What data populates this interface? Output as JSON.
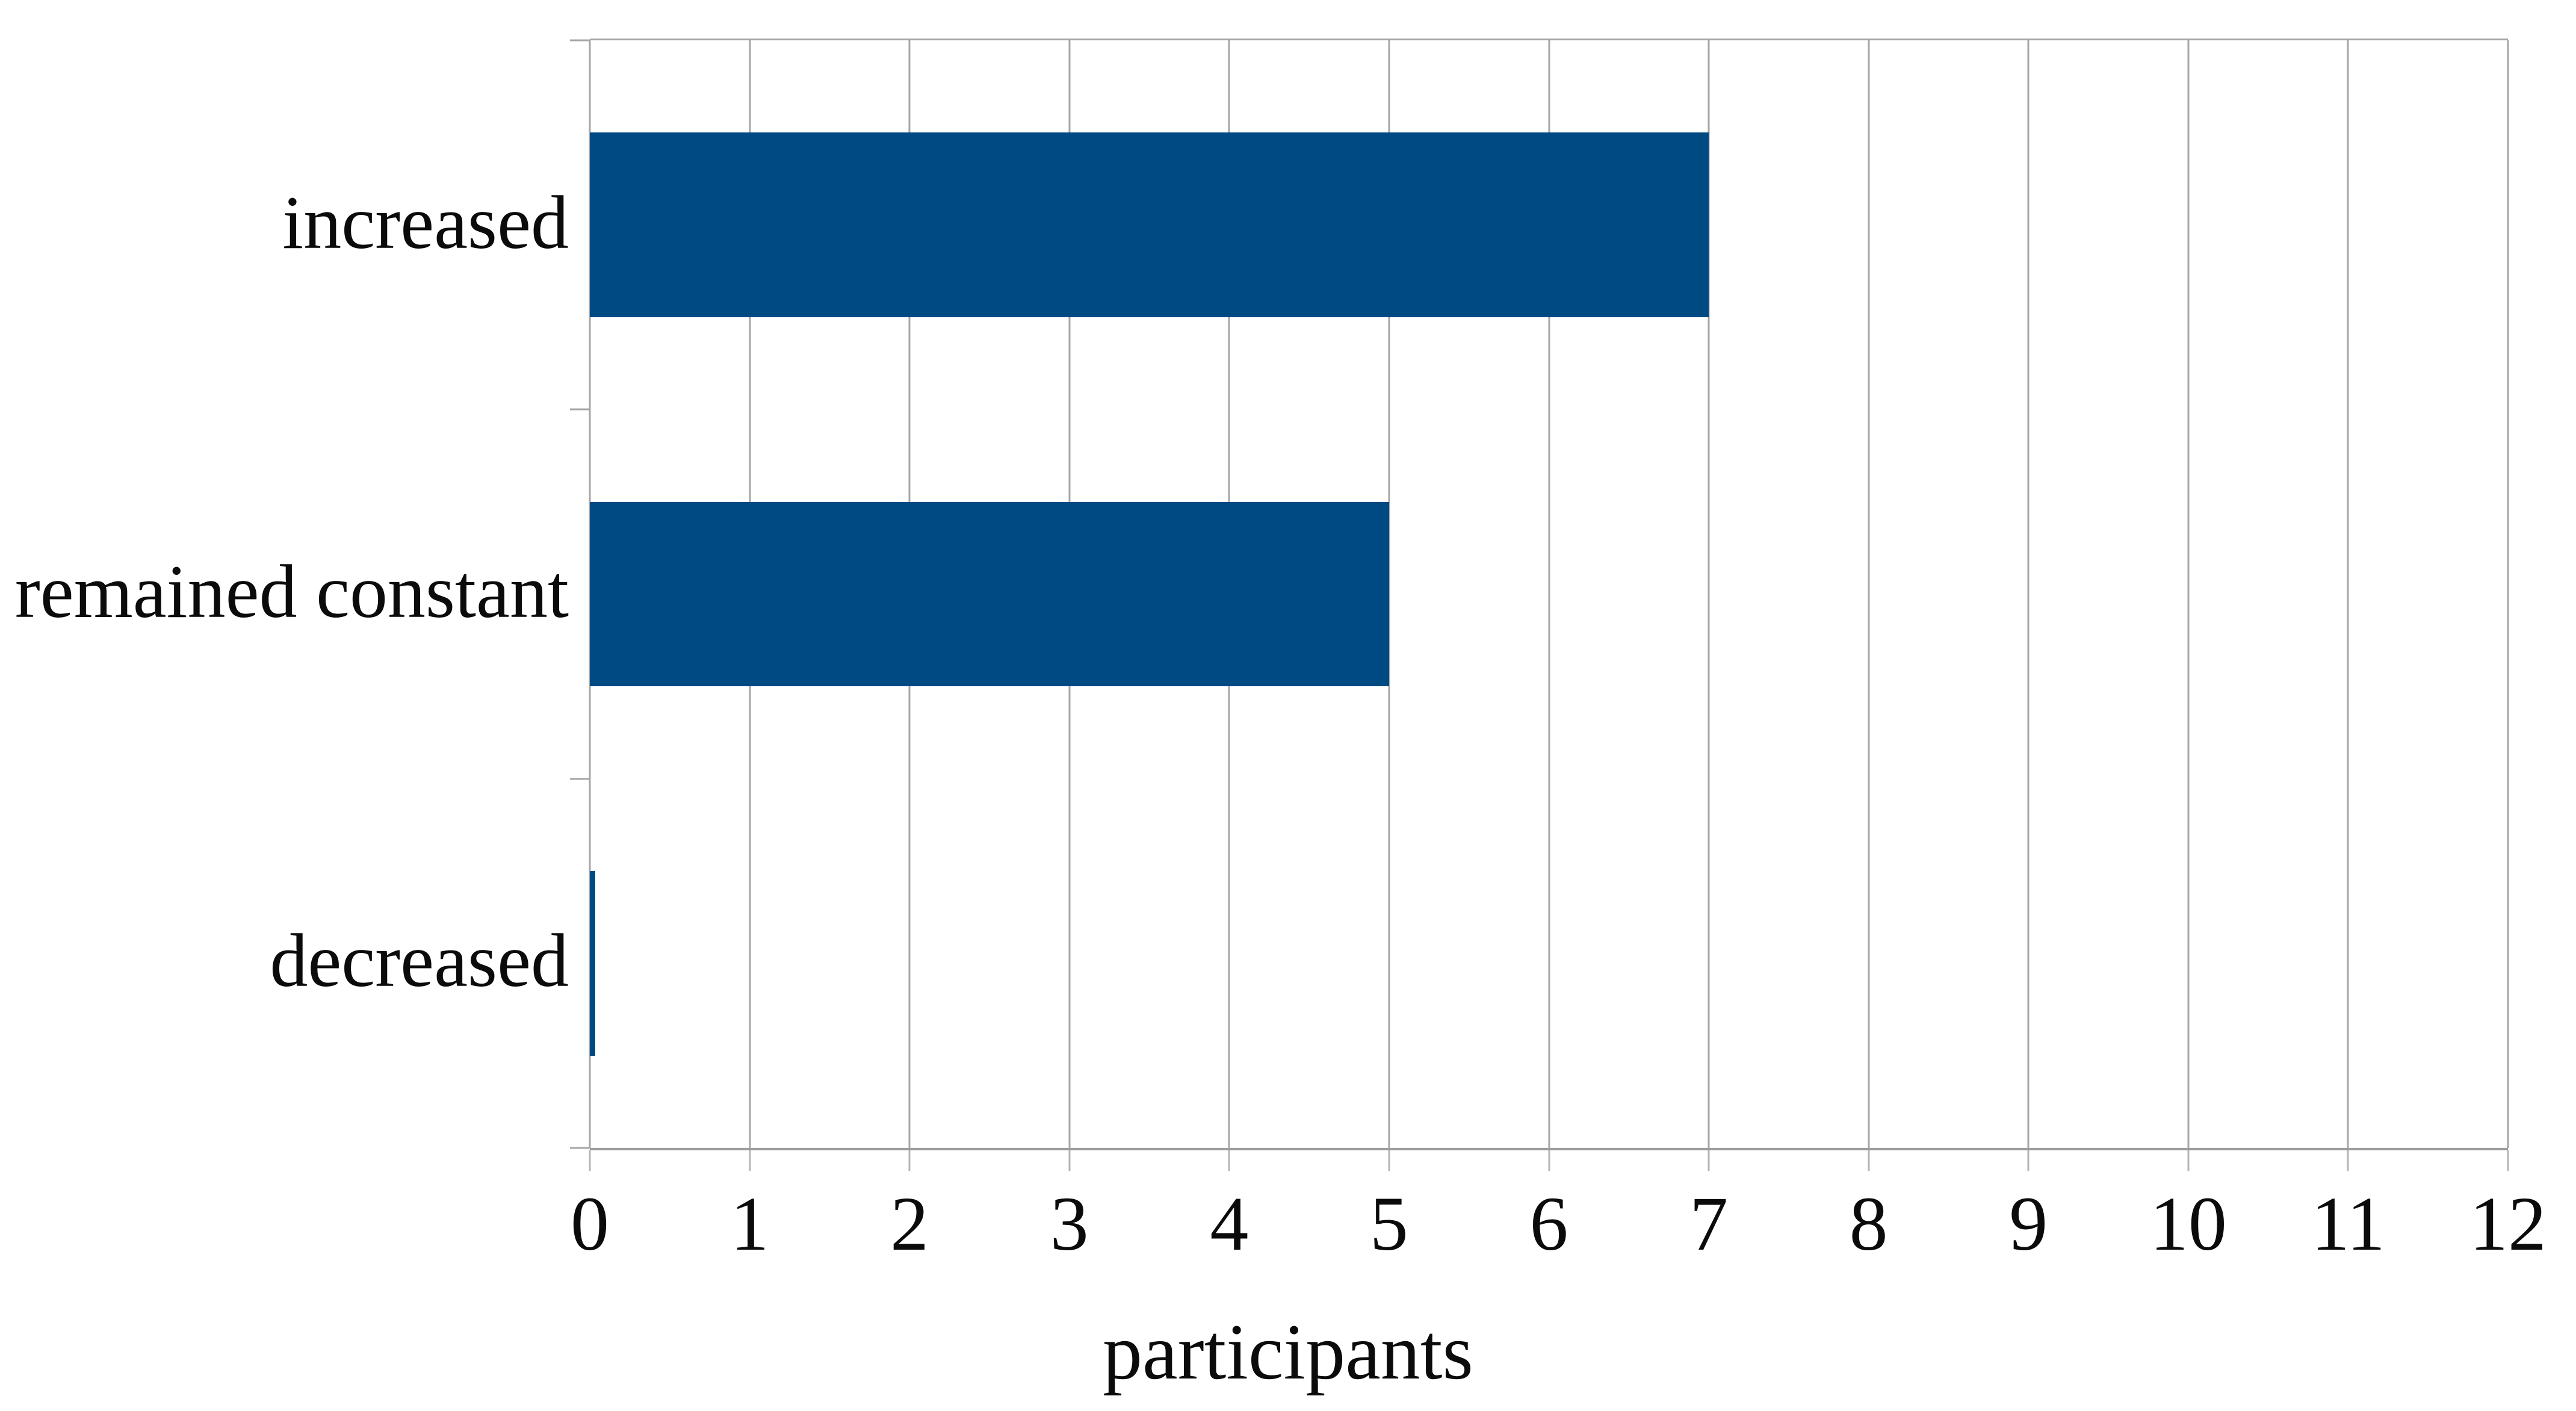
{
  "chart_data": {
    "type": "bar",
    "orientation": "horizontal",
    "title": "",
    "xlabel": "participants",
    "ylabel": "",
    "categories": [
      "increased",
      "remained constant",
      "decreased"
    ],
    "values": [
      7,
      5,
      0
    ],
    "xlim": [
      0,
      12
    ],
    "x_ticks": [
      0,
      1,
      2,
      3,
      4,
      5,
      6,
      7,
      8,
      9,
      10,
      11,
      12
    ],
    "grid": "vertical-on",
    "legend": "none",
    "bar_color": "#004a84",
    "gridline_color": "#a6a6a6",
    "text_color": "#0b0b0b",
    "background_color": "#ffffff"
  }
}
